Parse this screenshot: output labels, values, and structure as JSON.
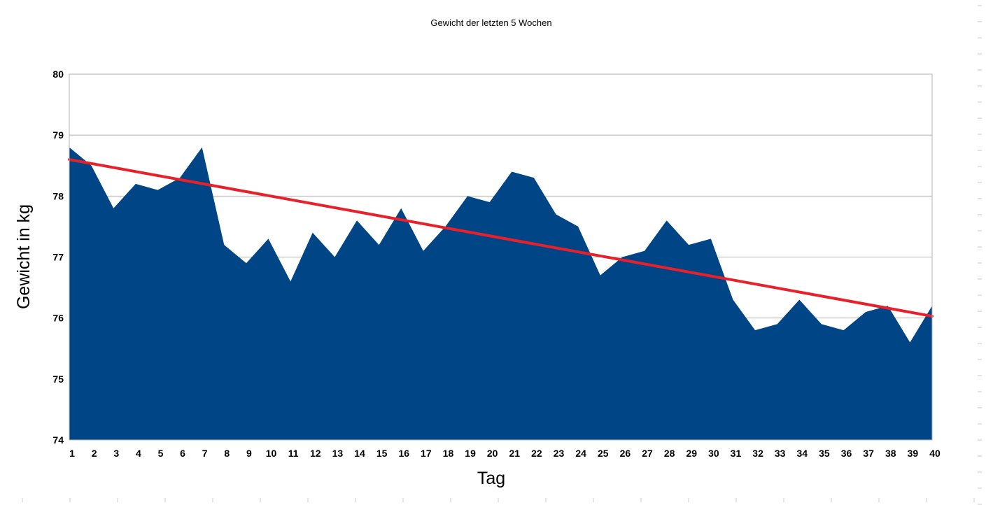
{
  "chart_data": {
    "type": "area",
    "title": "Gewicht der letzten 5 Wochen",
    "xlabel": "Tag",
    "ylabel": "Gewicht in kg",
    "x": [
      1,
      2,
      3,
      4,
      5,
      6,
      7,
      8,
      9,
      10,
      11,
      12,
      13,
      14,
      15,
      16,
      17,
      18,
      19,
      20,
      21,
      22,
      23,
      24,
      25,
      26,
      27,
      28,
      29,
      30,
      31,
      32,
      33,
      34,
      35,
      36,
      37,
      38,
      39,
      40
    ],
    "series": [
      {
        "values": [
          78.8,
          78.5,
          77.8,
          78.2,
          78.1,
          78.3,
          78.8,
          77.2,
          76.9,
          77.3,
          76.6,
          77.4,
          77.0,
          77.6,
          77.2,
          77.8,
          77.1,
          77.5,
          78.0,
          77.9,
          78.4,
          78.3,
          77.7,
          77.5,
          76.7,
          77.0,
          77.1,
          77.6,
          77.2,
          77.3,
          76.3,
          75.8,
          75.9,
          76.3,
          75.9,
          75.8,
          76.1,
          76.2,
          75.6,
          76.2
        ],
        "color": "#004586"
      }
    ],
    "trendline": {
      "type": "linear",
      "start": 78.6,
      "end": 76.03,
      "color": "#e8202a"
    },
    "ylim": [
      74,
      80
    ],
    "yticks": [
      74,
      75,
      76,
      77,
      78,
      79,
      80
    ],
    "grid": true,
    "legend": "none"
  }
}
